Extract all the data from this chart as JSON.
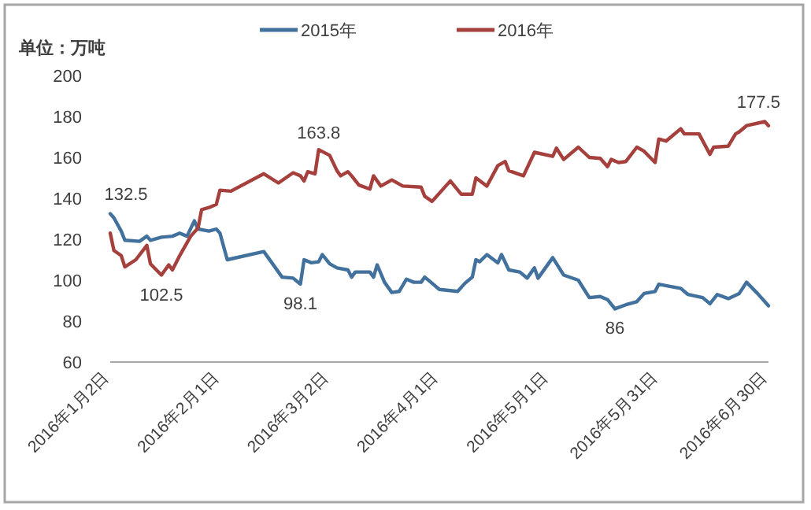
{
  "chart_data": {
    "type": "line",
    "ylabel": "单位：万吨",
    "xlim": [
      "2016-01-02",
      "2016-06-30"
    ],
    "xticks": [
      {
        "value": "2016-01-02",
        "label": "2016年1月2日"
      },
      {
        "value": "2016-02-01",
        "label": "2016年2月1日"
      },
      {
        "value": "2016-03-02",
        "label": "2016年3月2日"
      },
      {
        "value": "2016-04-01",
        "label": "2016年4月1日"
      },
      {
        "value": "2016-05-01",
        "label": "2016年5月1日"
      },
      {
        "value": "2016-05-31",
        "label": "2016年5月31日"
      },
      {
        "value": "2016-06-30",
        "label": "2016年6月30日"
      }
    ],
    "ylim": [
      60,
      200
    ],
    "yticks": [
      60,
      80,
      100,
      120,
      140,
      160,
      180,
      200
    ],
    "grid": false,
    "legend": "top",
    "marker": "none",
    "line_style": "solid",
    "series": [
      {
        "name": "2015年",
        "color": "#41719c",
        "x": [
          "2016-01-02",
          "2016-01-03",
          "2016-01-05",
          "2016-01-06",
          "2016-01-10",
          "2016-01-12",
          "2016-01-13",
          "2016-01-16",
          "2016-01-19",
          "2016-01-21",
          "2016-01-23",
          "2016-01-25",
          "2016-01-26",
          "2016-01-29",
          "2016-01-31",
          "2016-02-01",
          "2016-02-03",
          "2016-02-13",
          "2016-02-15",
          "2016-02-18",
          "2016-02-21",
          "2016-02-23",
          "2016-02-24",
          "2016-02-26",
          "2016-02-28",
          "2016-02-29",
          "2016-03-02",
          "2016-03-04",
          "2016-03-07",
          "2016-03-08",
          "2016-03-09",
          "2016-03-13",
          "2016-03-14",
          "2016-03-15",
          "2016-03-17",
          "2016-03-19",
          "2016-03-21",
          "2016-03-23",
          "2016-03-25",
          "2016-03-27",
          "2016-03-28",
          "2016-03-30",
          "2016-04-01",
          "2016-04-06",
          "2016-04-08",
          "2016-04-10",
          "2016-04-11",
          "2016-04-12",
          "2016-04-14",
          "2016-04-17",
          "2016-04-18",
          "2016-04-20",
          "2016-04-23",
          "2016-04-25",
          "2016-04-27",
          "2016-04-28",
          "2016-05-02",
          "2016-05-05",
          "2016-05-09",
          "2016-05-12",
          "2016-05-15",
          "2016-05-17",
          "2016-05-19",
          "2016-05-22",
          "2016-05-25",
          "2016-05-27",
          "2016-05-30",
          "2016-05-31",
          "2016-06-03",
          "2016-06-06",
          "2016-06-08",
          "2016-06-12",
          "2016-06-14",
          "2016-06-16",
          "2016-06-19",
          "2016-06-22",
          "2016-06-24",
          "2016-06-27",
          "2016-06-30"
        ],
        "values": [
          132.5,
          130.5,
          124,
          119.5,
          119,
          121.5,
          119.5,
          121,
          121.5,
          123,
          121.5,
          129,
          125,
          124,
          125,
          123,
          110,
          114,
          109,
          101.5,
          101,
          98.1,
          110,
          108.5,
          109,
          112.5,
          108,
          106,
          105,
          101.5,
          104,
          104,
          101.5,
          107.5,
          99,
          94,
          94.5,
          100.5,
          99,
          99,
          101.5,
          98.5,
          95.5,
          94.5,
          98.5,
          101.5,
          110,
          109,
          112.5,
          108.5,
          112.5,
          105,
          104,
          101,
          106,
          101,
          111,
          102.5,
          100,
          91.5,
          92,
          90.5,
          86,
          88,
          89.5,
          93.5,
          94.5,
          98,
          97,
          96,
          93,
          91.5,
          88.5,
          93,
          91,
          93.5,
          99,
          93.5,
          87.5
        ]
      },
      {
        "name": "2016年",
        "color": "#a5403d",
        "x": [
          "2016-01-02",
          "2016-01-03",
          "2016-01-05",
          "2016-01-06",
          "2016-01-09",
          "2016-01-12",
          "2016-01-13",
          "2016-01-16",
          "2016-01-18",
          "2016-01-19",
          "2016-01-21",
          "2016-01-24",
          "2016-01-26",
          "2016-01-27",
          "2016-01-29",
          "2016-01-31",
          "2016-02-01",
          "2016-02-04",
          "2016-02-13",
          "2016-02-17",
          "2016-02-21",
          "2016-02-23",
          "2016-02-24",
          "2016-02-25",
          "2016-02-27",
          "2016-02-28",
          "2016-03-02",
          "2016-03-04",
          "2016-03-05",
          "2016-03-07",
          "2016-03-08",
          "2016-03-10",
          "2016-03-13",
          "2016-03-14",
          "2016-03-16",
          "2016-03-19",
          "2016-03-22",
          "2016-03-27",
          "2016-03-28",
          "2016-03-30",
          "2016-04-04",
          "2016-04-07",
          "2016-04-10",
          "2016-04-11",
          "2016-04-14",
          "2016-04-17",
          "2016-04-19",
          "2016-04-20",
          "2016-04-24",
          "2016-04-27",
          "2016-05-02",
          "2016-05-03",
          "2016-05-05",
          "2016-05-09",
          "2016-05-12",
          "2016-05-15",
          "2016-05-17",
          "2016-05-18",
          "2016-05-20",
          "2016-05-22",
          "2016-05-25",
          "2016-05-27",
          "2016-05-30",
          "2016-05-31",
          "2016-06-02",
          "2016-06-06",
          "2016-06-07",
          "2016-06-11",
          "2016-06-14",
          "2016-06-15",
          "2016-06-19",
          "2016-06-21",
          "2016-06-22",
          "2016-06-24",
          "2016-06-29",
          "2016-06-30"
        ],
        "values": [
          123,
          114.5,
          112,
          106.5,
          110,
          117,
          108,
          102.5,
          107.5,
          105,
          112,
          121.5,
          125.5,
          134.5,
          135.5,
          137,
          144,
          143.5,
          152,
          147.5,
          152.5,
          151,
          148.5,
          153,
          152,
          163.8,
          161,
          153.5,
          151,
          153,
          151,
          146.5,
          144.5,
          151,
          146,
          149,
          146,
          145.5,
          141,
          138.5,
          148.5,
          142,
          142,
          150,
          146,
          156,
          158,
          153.5,
          151,
          162.5,
          160.5,
          164.5,
          159,
          165,
          160,
          159.5,
          155.5,
          159,
          157.5,
          158,
          165,
          163,
          157.5,
          169,
          168,
          174,
          171.5,
          171.5,
          161.5,
          165,
          165.5,
          171.5,
          172.5,
          175.5,
          177.5,
          175.5
        ]
      }
    ],
    "annotations": [
      {
        "text": "132.5",
        "x": "2016-01-02",
        "y": 132.5
      },
      {
        "text": "102.5",
        "x": "2016-01-16",
        "y": 102.5
      },
      {
        "text": "163.8",
        "x": "2016-02-28",
        "y": 163.8
      },
      {
        "text": "98.1",
        "x": "2016-02-23",
        "y": 98.1
      },
      {
        "text": "86",
        "x": "2016-05-19",
        "y": 86
      },
      {
        "text": "177.5",
        "x": "2016-06-29",
        "y": 177.5
      }
    ]
  }
}
